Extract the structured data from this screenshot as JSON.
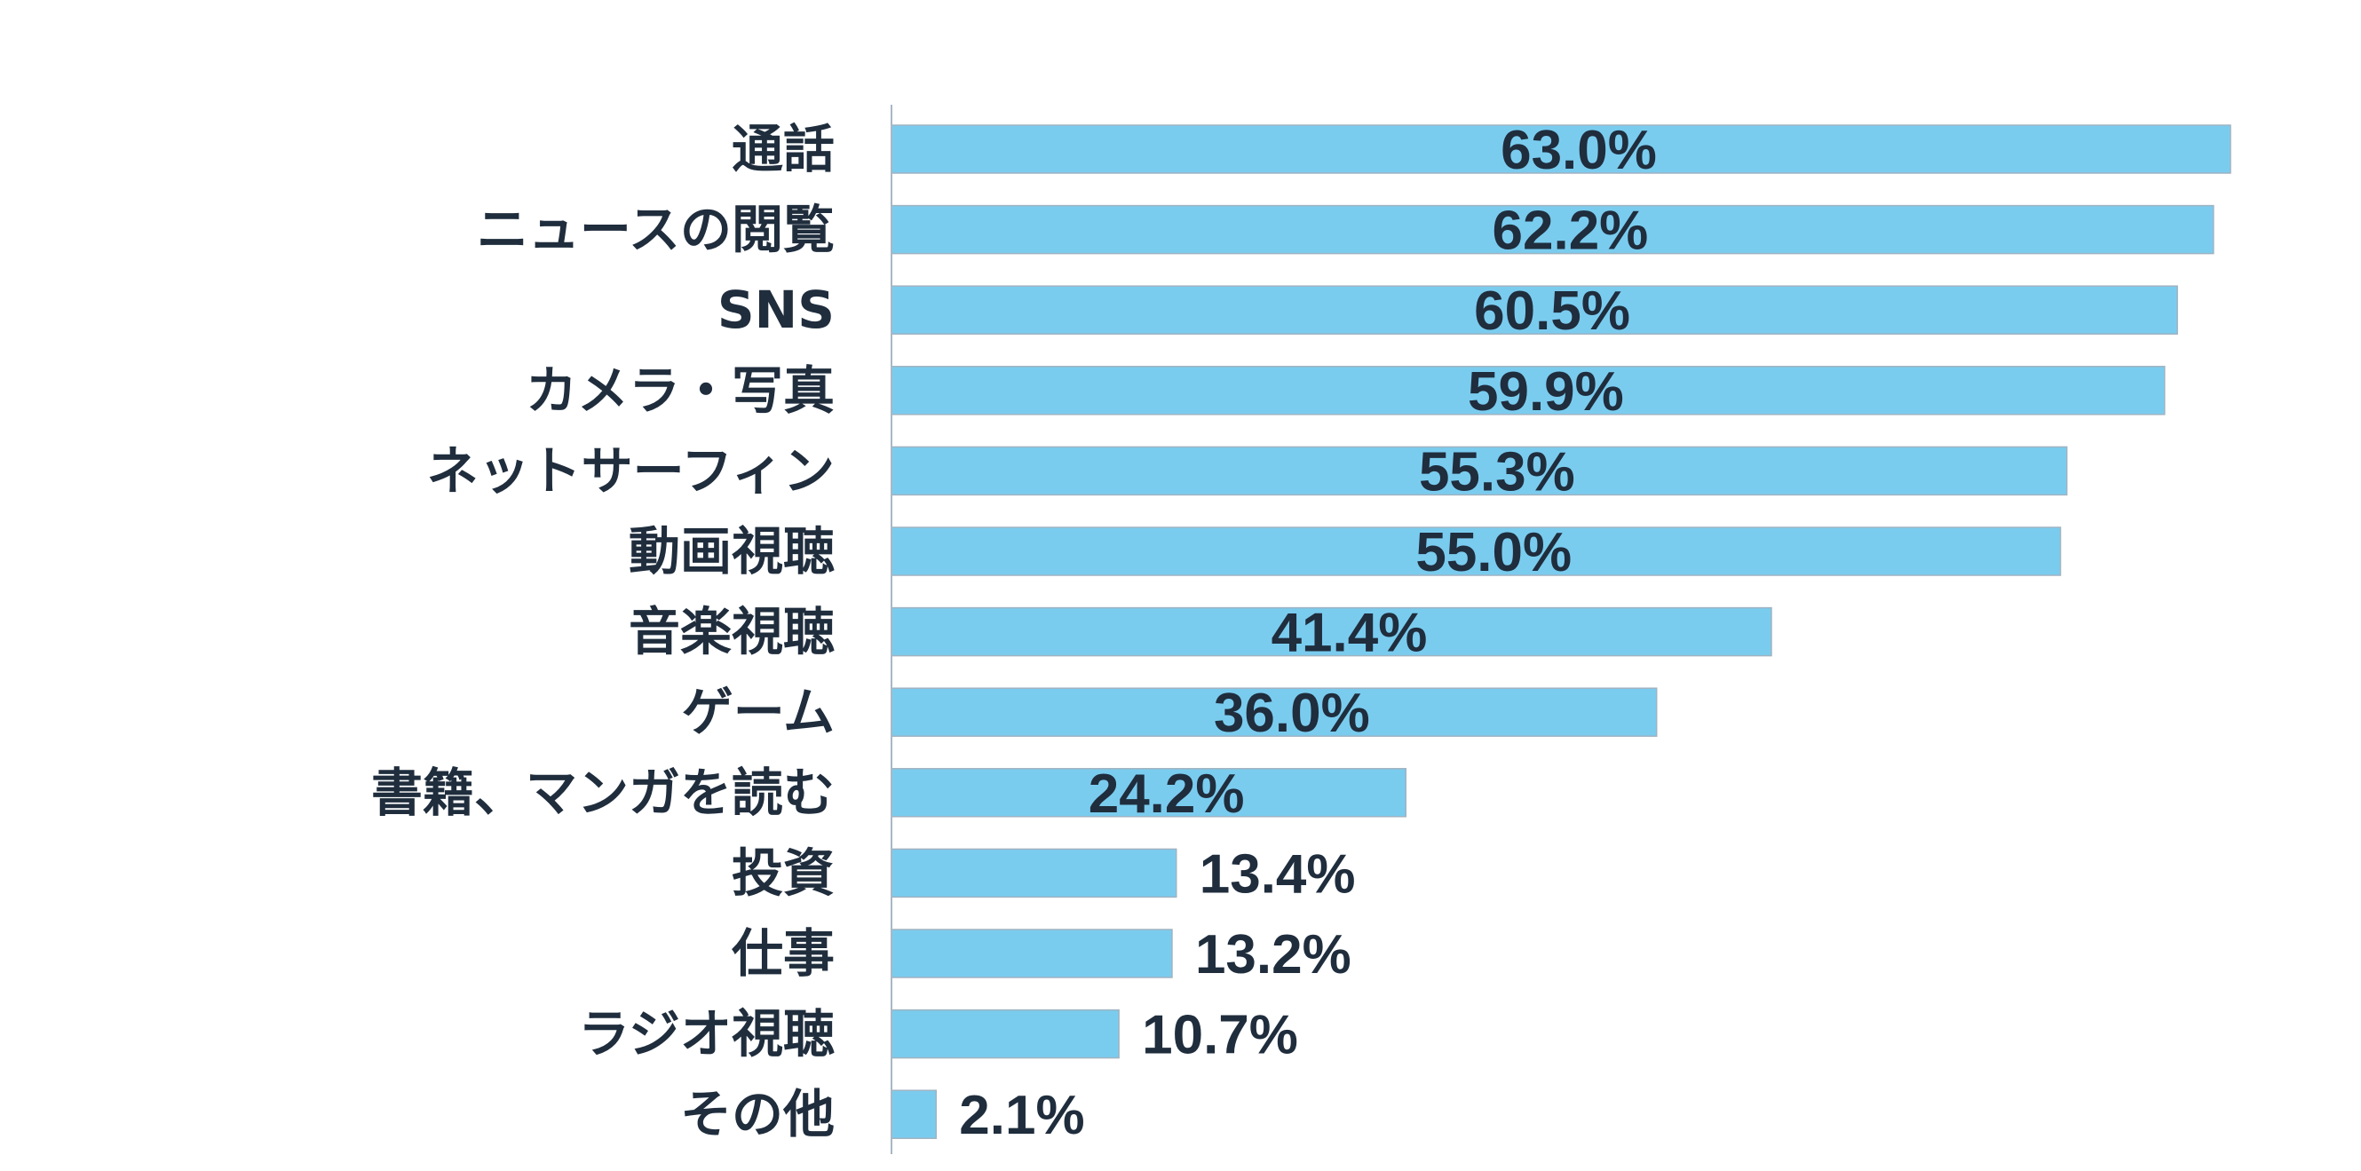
{
  "chart_data": {
    "type": "bar",
    "orientation": "horizontal",
    "title": "",
    "xlabel": "",
    "ylabel": "",
    "xlim": [
      0,
      63
    ],
    "grid": false,
    "legend": "none",
    "bar_color": "#7accef",
    "text_color": "#1f2d3d",
    "categories": [
      "通話",
      "ニュースの閲覧",
      "SNS",
      "カメラ・写真",
      "ネットサーフィン",
      "動画視聴",
      "音楽視聴",
      "ゲーム",
      "書籍、マンガを読む",
      "投資",
      "仕事",
      "ラジオ視聴",
      "その他"
    ],
    "values": [
      63.0,
      62.2,
      60.5,
      59.9,
      55.3,
      55.0,
      41.4,
      36.0,
      24.2,
      13.4,
      13.2,
      10.7,
      2.1
    ],
    "value_labels": [
      "63.0%",
      "62.2%",
      "60.5%",
      "59.9%",
      "55.3%",
      "55.0%",
      "41.4%",
      "36.0%",
      "24.2%",
      "13.4%",
      "13.2%",
      "10.7%",
      "2.1%"
    ]
  }
}
